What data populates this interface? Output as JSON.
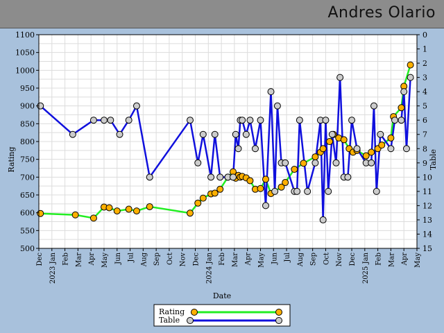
{
  "header": {
    "title": "Andres Olario"
  },
  "chart_data": {
    "type": "line",
    "xlabel": "Date",
    "ylabel": "Rating",
    "y2label": "Table",
    "ylim": [
      500,
      1100
    ],
    "y2lim": [
      0,
      15
    ],
    "y2_inverted": true,
    "grid": true,
    "legend_position": "bottom-center",
    "y_ticks": [
      500,
      550,
      600,
      650,
      700,
      750,
      800,
      850,
      900,
      950,
      1000,
      1050,
      1100
    ],
    "y2_ticks": [
      0,
      1,
      2,
      3,
      4,
      5,
      6,
      7,
      8,
      9,
      10,
      11,
      12,
      13,
      14,
      15
    ],
    "x_ticks": [
      "Dec",
      "2023 Jan",
      "Feb",
      "Mar",
      "Apr",
      "May",
      "Jun",
      "Jul",
      "Aug",
      "Sep",
      "Oct",
      "Nov",
      "Dec",
      "2024 Jan",
      "Feb",
      "Mar",
      "Apr",
      "May",
      "Jun",
      "Jul",
      "Aug",
      "Sep",
      "Oct",
      "Nov",
      "Dec",
      "2025 Jan",
      "Feb",
      "Mar",
      "Apr",
      "May"
    ],
    "series": [
      {
        "name": "Rating",
        "color": "#22ee22",
        "marker_color": "#ffb000",
        "axis": "left",
        "x": [
          0.12,
          2.8,
          4.2,
          5.0,
          5.4,
          6.0,
          6.9,
          7.5,
          8.5,
          11.6,
          12.2,
          12.6,
          13.2,
          13.5,
          13.9,
          14.5,
          14.9,
          15.1,
          15.3,
          15.45,
          15.6,
          15.9,
          16.2,
          16.6,
          17.0,
          17.4,
          17.8,
          18.6,
          18.9,
          19.6,
          20.3,
          21.2,
          21.6,
          21.8,
          22.3,
          22.6,
          23.0,
          23.4,
          23.8,
          24.1,
          24.4,
          25.1,
          25.5,
          26.0,
          26.3,
          27.0,
          27.2,
          27.8,
          28.0,
          28.5
        ],
        "y": [
          598,
          594,
          585,
          616,
          614,
          605,
          610,
          605,
          617,
          599,
          627,
          641,
          653,
          655,
          666,
          700,
          715,
          697,
          705,
          700,
          702,
          698,
          690,
          666,
          668,
          694,
          654,
          672,
          685,
          722,
          739,
          757,
          770,
          780,
          800,
          820,
          810,
          805,
          780,
          770,
          775,
          760,
          770,
          780,
          790,
          810,
          870,
          895,
          955,
          1015
        ]
      },
      {
        "name": "Table",
        "color": "#1010dd",
        "marker_color": "#cccccc",
        "axis": "right",
        "x": [
          0.12,
          2.6,
          4.2,
          5.0,
          5.5,
          6.2,
          6.9,
          7.5,
          8.5,
          11.6,
          12.2,
          12.6,
          13.2,
          13.5,
          13.9,
          14.5,
          14.9,
          15.1,
          15.3,
          15.45,
          15.6,
          15.9,
          16.2,
          16.6,
          17.0,
          17.4,
          17.8,
          18.1,
          18.3,
          18.6,
          18.9,
          19.6,
          19.8,
          20.0,
          20.6,
          21.2,
          21.6,
          21.8,
          22.0,
          22.2,
          22.5,
          22.8,
          23.1,
          23.4,
          23.7,
          24.0,
          24.4,
          25.1,
          25.5,
          25.7,
          25.9,
          26.2,
          27.0,
          27.3,
          27.8,
          28.0,
          28.2,
          28.5
        ],
        "y": [
          5,
          7,
          6,
          6,
          6,
          7,
          6,
          5,
          10,
          6,
          9,
          7,
          10,
          7,
          10,
          10,
          10,
          7,
          8,
          6,
          6,
          7,
          6,
          8,
          6,
          12,
          4,
          11,
          5,
          9,
          9,
          11,
          11,
          6,
          11,
          9,
          6,
          13,
          6,
          11,
          7,
          9,
          3,
          10,
          10,
          6,
          8,
          9,
          9,
          5,
          11,
          7,
          8,
          6,
          6,
          4,
          8,
          3
        ]
      }
    ]
  }
}
